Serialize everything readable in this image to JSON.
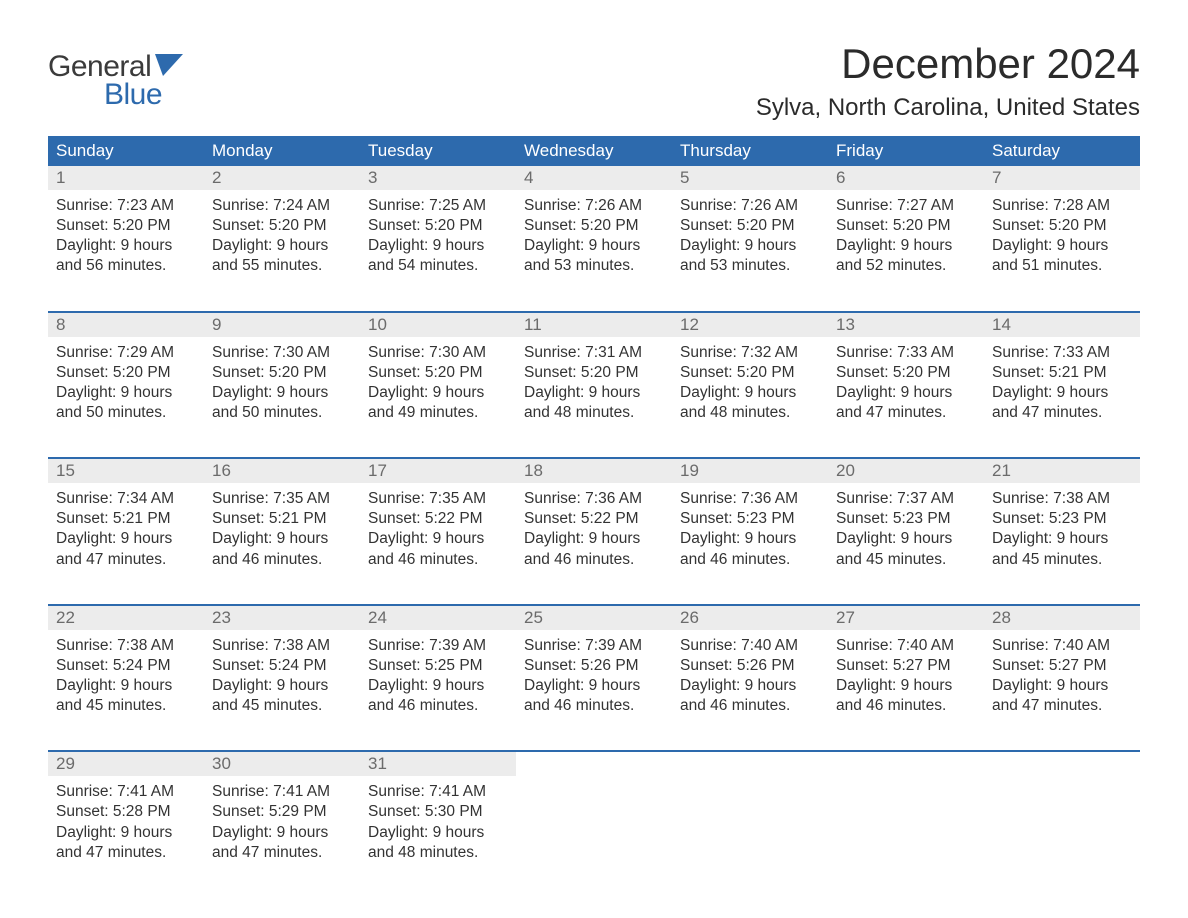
{
  "logo": {
    "text1": "General",
    "text2": "Blue",
    "color_primary": "#2d6aad",
    "color_dark": "#3b3b3b"
  },
  "title": "December 2024",
  "location": "Sylva, North Carolina, United States",
  "day_names": [
    "Sunday",
    "Monday",
    "Tuesday",
    "Wednesday",
    "Thursday",
    "Friday",
    "Saturday"
  ],
  "header_bg": "#2d6aad",
  "daynum_bg": "#ececec",
  "weeks": [
    {
      "days": [
        {
          "n": "1",
          "sunrise": "7:23 AM",
          "sunset": "5:20 PM",
          "daylight": "9 hours and 56 minutes."
        },
        {
          "n": "2",
          "sunrise": "7:24 AM",
          "sunset": "5:20 PM",
          "daylight": "9 hours and 55 minutes."
        },
        {
          "n": "3",
          "sunrise": "7:25 AM",
          "sunset": "5:20 PM",
          "daylight": "9 hours and 54 minutes."
        },
        {
          "n": "4",
          "sunrise": "7:26 AM",
          "sunset": "5:20 PM",
          "daylight": "9 hours and 53 minutes."
        },
        {
          "n": "5",
          "sunrise": "7:26 AM",
          "sunset": "5:20 PM",
          "daylight": "9 hours and 53 minutes."
        },
        {
          "n": "6",
          "sunrise": "7:27 AM",
          "sunset": "5:20 PM",
          "daylight": "9 hours and 52 minutes."
        },
        {
          "n": "7",
          "sunrise": "7:28 AM",
          "sunset": "5:20 PM",
          "daylight": "9 hours and 51 minutes."
        }
      ]
    },
    {
      "days": [
        {
          "n": "8",
          "sunrise": "7:29 AM",
          "sunset": "5:20 PM",
          "daylight": "9 hours and 50 minutes."
        },
        {
          "n": "9",
          "sunrise": "7:30 AM",
          "sunset": "5:20 PM",
          "daylight": "9 hours and 50 minutes."
        },
        {
          "n": "10",
          "sunrise": "7:30 AM",
          "sunset": "5:20 PM",
          "daylight": "9 hours and 49 minutes."
        },
        {
          "n": "11",
          "sunrise": "7:31 AM",
          "sunset": "5:20 PM",
          "daylight": "9 hours and 48 minutes."
        },
        {
          "n": "12",
          "sunrise": "7:32 AM",
          "sunset": "5:20 PM",
          "daylight": "9 hours and 48 minutes."
        },
        {
          "n": "13",
          "sunrise": "7:33 AM",
          "sunset": "5:20 PM",
          "daylight": "9 hours and 47 minutes."
        },
        {
          "n": "14",
          "sunrise": "7:33 AM",
          "sunset": "5:21 PM",
          "daylight": "9 hours and 47 minutes."
        }
      ]
    },
    {
      "days": [
        {
          "n": "15",
          "sunrise": "7:34 AM",
          "sunset": "5:21 PM",
          "daylight": "9 hours and 47 minutes."
        },
        {
          "n": "16",
          "sunrise": "7:35 AM",
          "sunset": "5:21 PM",
          "daylight": "9 hours and 46 minutes."
        },
        {
          "n": "17",
          "sunrise": "7:35 AM",
          "sunset": "5:22 PM",
          "daylight": "9 hours and 46 minutes."
        },
        {
          "n": "18",
          "sunrise": "7:36 AM",
          "sunset": "5:22 PM",
          "daylight": "9 hours and 46 minutes."
        },
        {
          "n": "19",
          "sunrise": "7:36 AM",
          "sunset": "5:23 PM",
          "daylight": "9 hours and 46 minutes."
        },
        {
          "n": "20",
          "sunrise": "7:37 AM",
          "sunset": "5:23 PM",
          "daylight": "9 hours and 45 minutes."
        },
        {
          "n": "21",
          "sunrise": "7:38 AM",
          "sunset": "5:23 PM",
          "daylight": "9 hours and 45 minutes."
        }
      ]
    },
    {
      "days": [
        {
          "n": "22",
          "sunrise": "7:38 AM",
          "sunset": "5:24 PM",
          "daylight": "9 hours and 45 minutes."
        },
        {
          "n": "23",
          "sunrise": "7:38 AM",
          "sunset": "5:24 PM",
          "daylight": "9 hours and 45 minutes."
        },
        {
          "n": "24",
          "sunrise": "7:39 AM",
          "sunset": "5:25 PM",
          "daylight": "9 hours and 46 minutes."
        },
        {
          "n": "25",
          "sunrise": "7:39 AM",
          "sunset": "5:26 PM",
          "daylight": "9 hours and 46 minutes."
        },
        {
          "n": "26",
          "sunrise": "7:40 AM",
          "sunset": "5:26 PM",
          "daylight": "9 hours and 46 minutes."
        },
        {
          "n": "27",
          "sunrise": "7:40 AM",
          "sunset": "5:27 PM",
          "daylight": "9 hours and 46 minutes."
        },
        {
          "n": "28",
          "sunrise": "7:40 AM",
          "sunset": "5:27 PM",
          "daylight": "9 hours and 47 minutes."
        }
      ]
    },
    {
      "days": [
        {
          "n": "29",
          "sunrise": "7:41 AM",
          "sunset": "5:28 PM",
          "daylight": "9 hours and 47 minutes."
        },
        {
          "n": "30",
          "sunrise": "7:41 AM",
          "sunset": "5:29 PM",
          "daylight": "9 hours and 47 minutes."
        },
        {
          "n": "31",
          "sunrise": "7:41 AM",
          "sunset": "5:30 PM",
          "daylight": "9 hours and 48 minutes."
        },
        null,
        null,
        null,
        null
      ]
    }
  ],
  "labels": {
    "sunrise": "Sunrise:",
    "sunset": "Sunset:",
    "daylight": "Daylight:"
  }
}
